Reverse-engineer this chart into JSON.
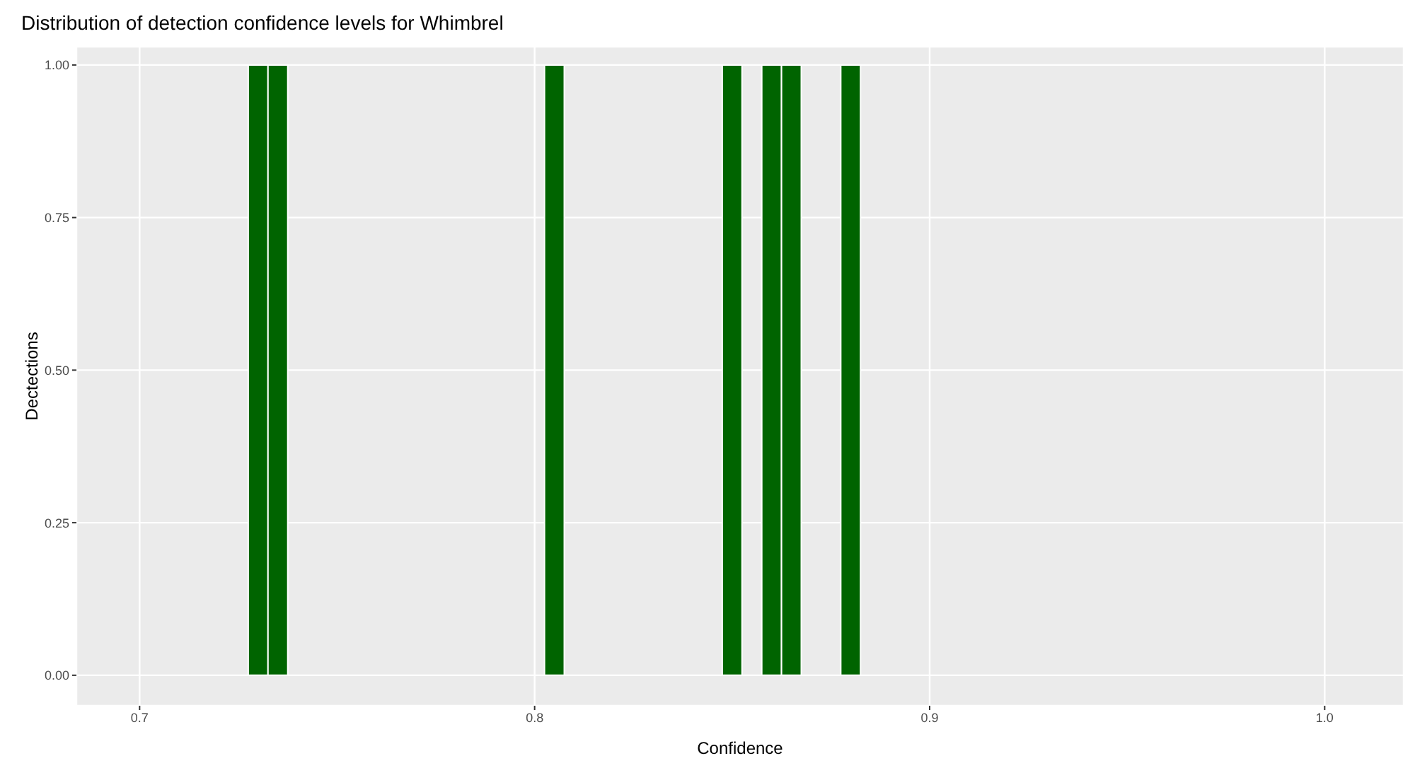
{
  "chart_data": {
    "type": "histogram",
    "title": "Distribution of detection confidence levels for Whimbrel",
    "xlabel": "Confidence",
    "ylabel": "Dectections",
    "bins": [
      0.7275,
      0.7325,
      0.7375,
      0.7425,
      0.7475,
      0.7525,
      0.7575,
      0.7625,
      0.7675,
      0.7725,
      0.7775,
      0.7825,
      0.7875,
      0.7925,
      0.7975,
      0.8025,
      0.8075,
      0.8125,
      0.8175,
      0.8225,
      0.8275,
      0.8325,
      0.8375,
      0.8425,
      0.8475,
      0.8525,
      0.8575,
      0.8625,
      0.8675,
      0.8725,
      0.8775,
      0.8825
    ],
    "values": [
      1,
      1,
      0,
      0,
      0,
      0,
      0,
      0,
      0,
      0,
      0,
      0,
      0,
      0,
      0,
      1,
      0,
      0,
      0,
      0,
      0,
      0,
      0,
      0,
      1,
      0,
      1,
      1,
      0,
      0,
      1
    ],
    "color": "#006400",
    "xlim": [
      0.684,
      1.02
    ],
    "xticks": [
      0.7,
      0.8,
      0.9,
      {
        "value": 1.0,
        "label": "1.0"
      }
    ],
    "ylim": [
      -0.05,
      1.03
    ],
    "yticks": [
      {
        "value": 0,
        "label": "0.00"
      },
      {
        "value": 0.25,
        "label": "0.25"
      },
      {
        "value": 0.5,
        "label": "0.50"
      },
      {
        "value": 0.75,
        "label": "0.75"
      },
      {
        "value": 1,
        "label": "1.00"
      }
    ],
    "grid": true
  }
}
